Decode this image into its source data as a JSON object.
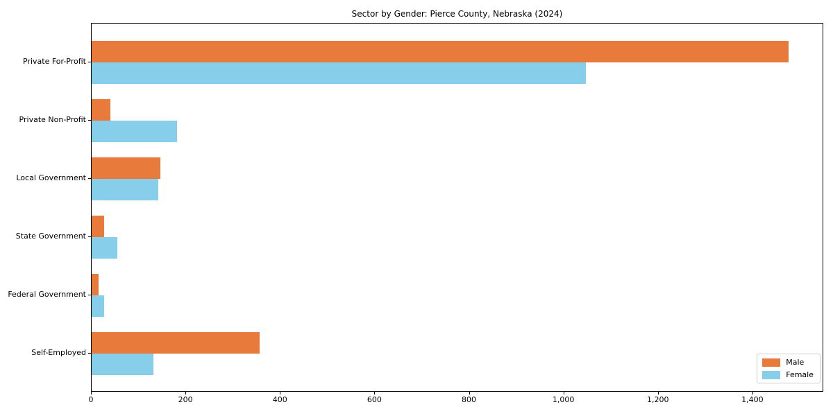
{
  "chart_data": {
    "type": "bar",
    "orientation": "horizontal",
    "title": "Sector by Gender: Pierce County, Nebraska (2024)",
    "categories": [
      "Private For-Profit",
      "Private Non-Profit",
      "Local Government",
      "State Government",
      "Federal Government",
      "Self-Employed"
    ],
    "series": [
      {
        "name": "Male",
        "color": "#e87a3c",
        "values": [
          1475,
          40,
          145,
          26,
          14,
          355
        ]
      },
      {
        "name": "Female",
        "color": "#87ceeb",
        "values": [
          1046,
          180,
          141,
          55,
          26,
          130
        ]
      }
    ],
    "xlabel": "",
    "ylabel": "",
    "xlim": [
      0,
      1550
    ],
    "xticks": [
      0,
      200,
      400,
      600,
      800,
      1000,
      1200,
      1400
    ],
    "xtick_labels": [
      "0",
      "200",
      "400",
      "600",
      "800",
      "1,000",
      "1,200",
      "1,400"
    ],
    "grid": false,
    "legend_position": "lower right",
    "frame": true
  }
}
